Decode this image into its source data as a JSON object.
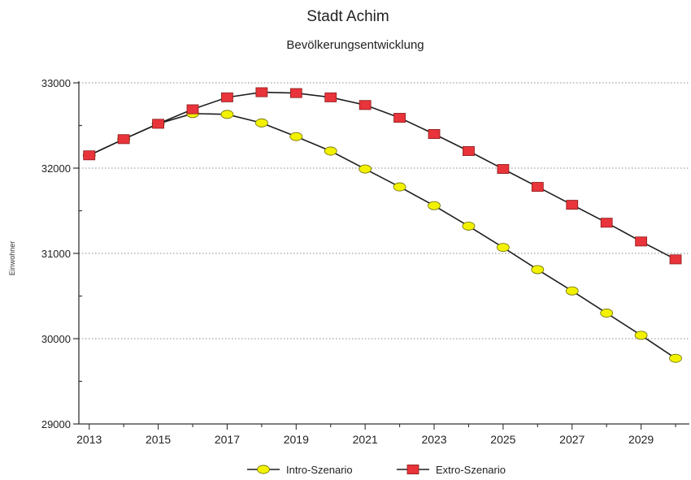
{
  "chart_data": {
    "type": "line",
    "title": "Stadt Achim",
    "subtitle": "Bevölkerungsentwicklung",
    "ylabel": "Einwohner",
    "xlabel": "",
    "xlim": [
      2012.7,
      2030.4
    ],
    "ylim": [
      29000,
      33000
    ],
    "x_ticks": [
      2013,
      2015,
      2017,
      2019,
      2021,
      2023,
      2025,
      2027,
      2029
    ],
    "y_ticks": [
      29000,
      30000,
      31000,
      32000,
      33000
    ],
    "grid": "horizontal-dotted",
    "legend": "bottom-center",
    "x": [
      2013,
      2014,
      2015,
      2016,
      2017,
      2018,
      2019,
      2020,
      2021,
      2022,
      2023,
      2024,
      2025,
      2026,
      2027,
      2028,
      2029,
      2030
    ],
    "series": [
      {
        "name": "Intro-Szenario",
        "marker": "circle",
        "color": "#f2f200",
        "values": [
          32150,
          32340,
          32520,
          32640,
          32630,
          32530,
          32370,
          32200,
          31990,
          31780,
          31560,
          31320,
          31070,
          30810,
          30560,
          30300,
          30040,
          29770
        ]
      },
      {
        "name": "Extro-Szenario",
        "marker": "square",
        "color": "#e8343a",
        "values": [
          32150,
          32340,
          32520,
          32690,
          32830,
          32890,
          32880,
          32830,
          32740,
          32590,
          32400,
          32200,
          31990,
          31780,
          31570,
          31360,
          31140,
          30930
        ]
      }
    ]
  }
}
